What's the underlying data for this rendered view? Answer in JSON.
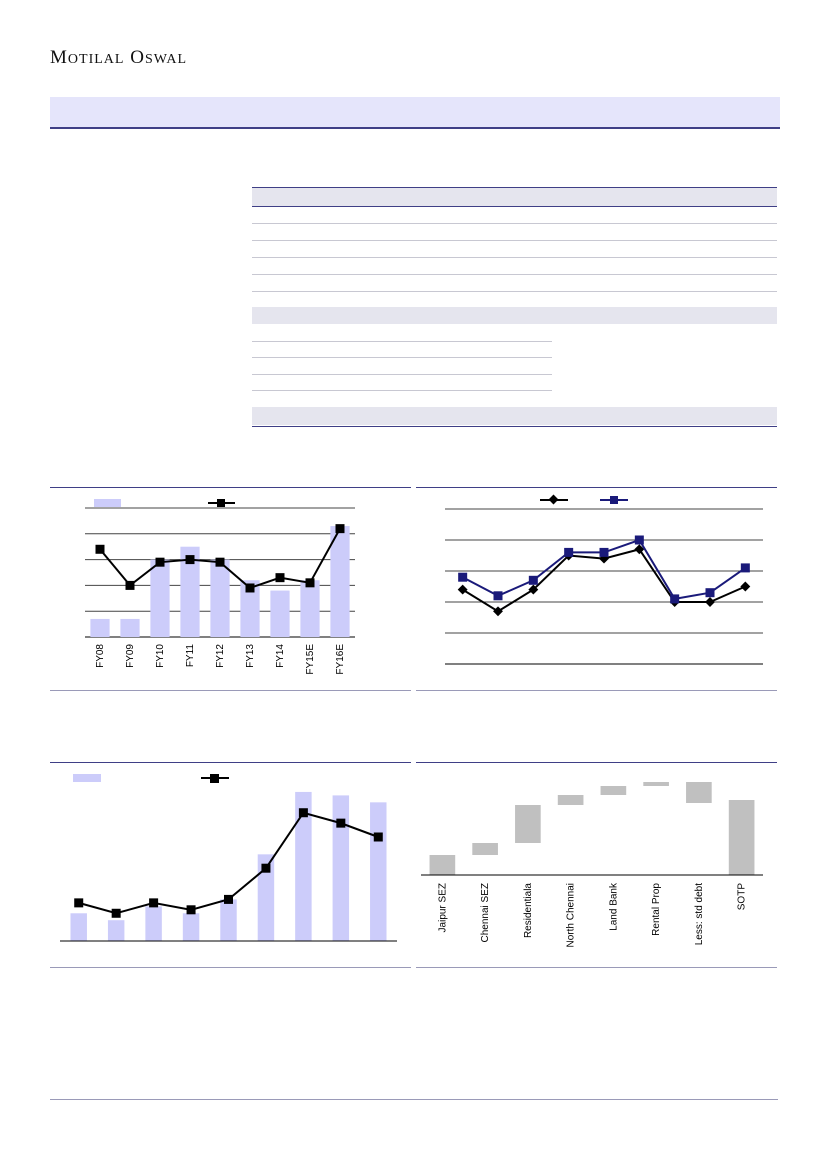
{
  "header": {
    "logo_first": "M",
    "logo_first_rest": "OTILAL",
    "logo_second": "O",
    "logo_second_rest": "SWAL",
    "colors": {
      "banner": "#e5e5fb",
      "rule": "#3f3f86"
    }
  },
  "charts": {
    "chart_a": {
      "type": "bar+line",
      "categories": [
        "FY08",
        "FY09",
        "FY10",
        "FY11",
        "FY12",
        "FY13",
        "FY14",
        "FY15E",
        "FY16E"
      ],
      "bar_values": [
        7,
        7,
        30,
        35,
        30,
        22,
        18,
        22,
        43
      ],
      "line_values": [
        34,
        20,
        29,
        30,
        29,
        19,
        23,
        21,
        42
      ],
      "ylim": [
        0,
        50
      ],
      "colors": {
        "bar": "#ccccfa",
        "line": "#000000"
      }
    },
    "chart_b": {
      "type": "line",
      "series": [
        {
          "values": [
            2.4,
            1.7,
            2.4,
            3.5,
            3.4,
            3.7,
            2.0,
            2.0,
            2.5
          ],
          "color": "#000000",
          "marker": "diamond"
        },
        {
          "values": [
            2.8,
            2.2,
            2.7,
            3.6,
            3.6,
            4.0,
            2.1,
            2.3,
            3.1
          ],
          "color": "#1a1a7a",
          "marker": "square"
        }
      ],
      "ylim": [
        0,
        5
      ],
      "colors": {
        "grid": "#444444"
      }
    },
    "chart_c": {
      "type": "bar+line",
      "bar_values": [
        8,
        6,
        10,
        8,
        12,
        25,
        43,
        42,
        40
      ],
      "line_values": [
        11,
        8,
        11,
        9,
        12,
        21,
        37,
        34,
        30
      ],
      "ylim": [
        0,
        45
      ],
      "colors": {
        "bar": "#ccccfa",
        "line": "#000000"
      }
    },
    "chart_d": {
      "type": "waterfall",
      "categories": [
        "Jaipur SEZ",
        "Chennai SEZ",
        "Residentiala",
        "North Chennai",
        "Land Bank",
        "Rental Prop",
        "Less: std debt",
        "SOTP"
      ],
      "deltas": [
        20,
        12,
        38,
        10,
        9,
        4,
        -21,
        75
      ],
      "ylim": [
        0,
        100
      ],
      "colors": {
        "bar": "#c0c0c0"
      }
    }
  }
}
